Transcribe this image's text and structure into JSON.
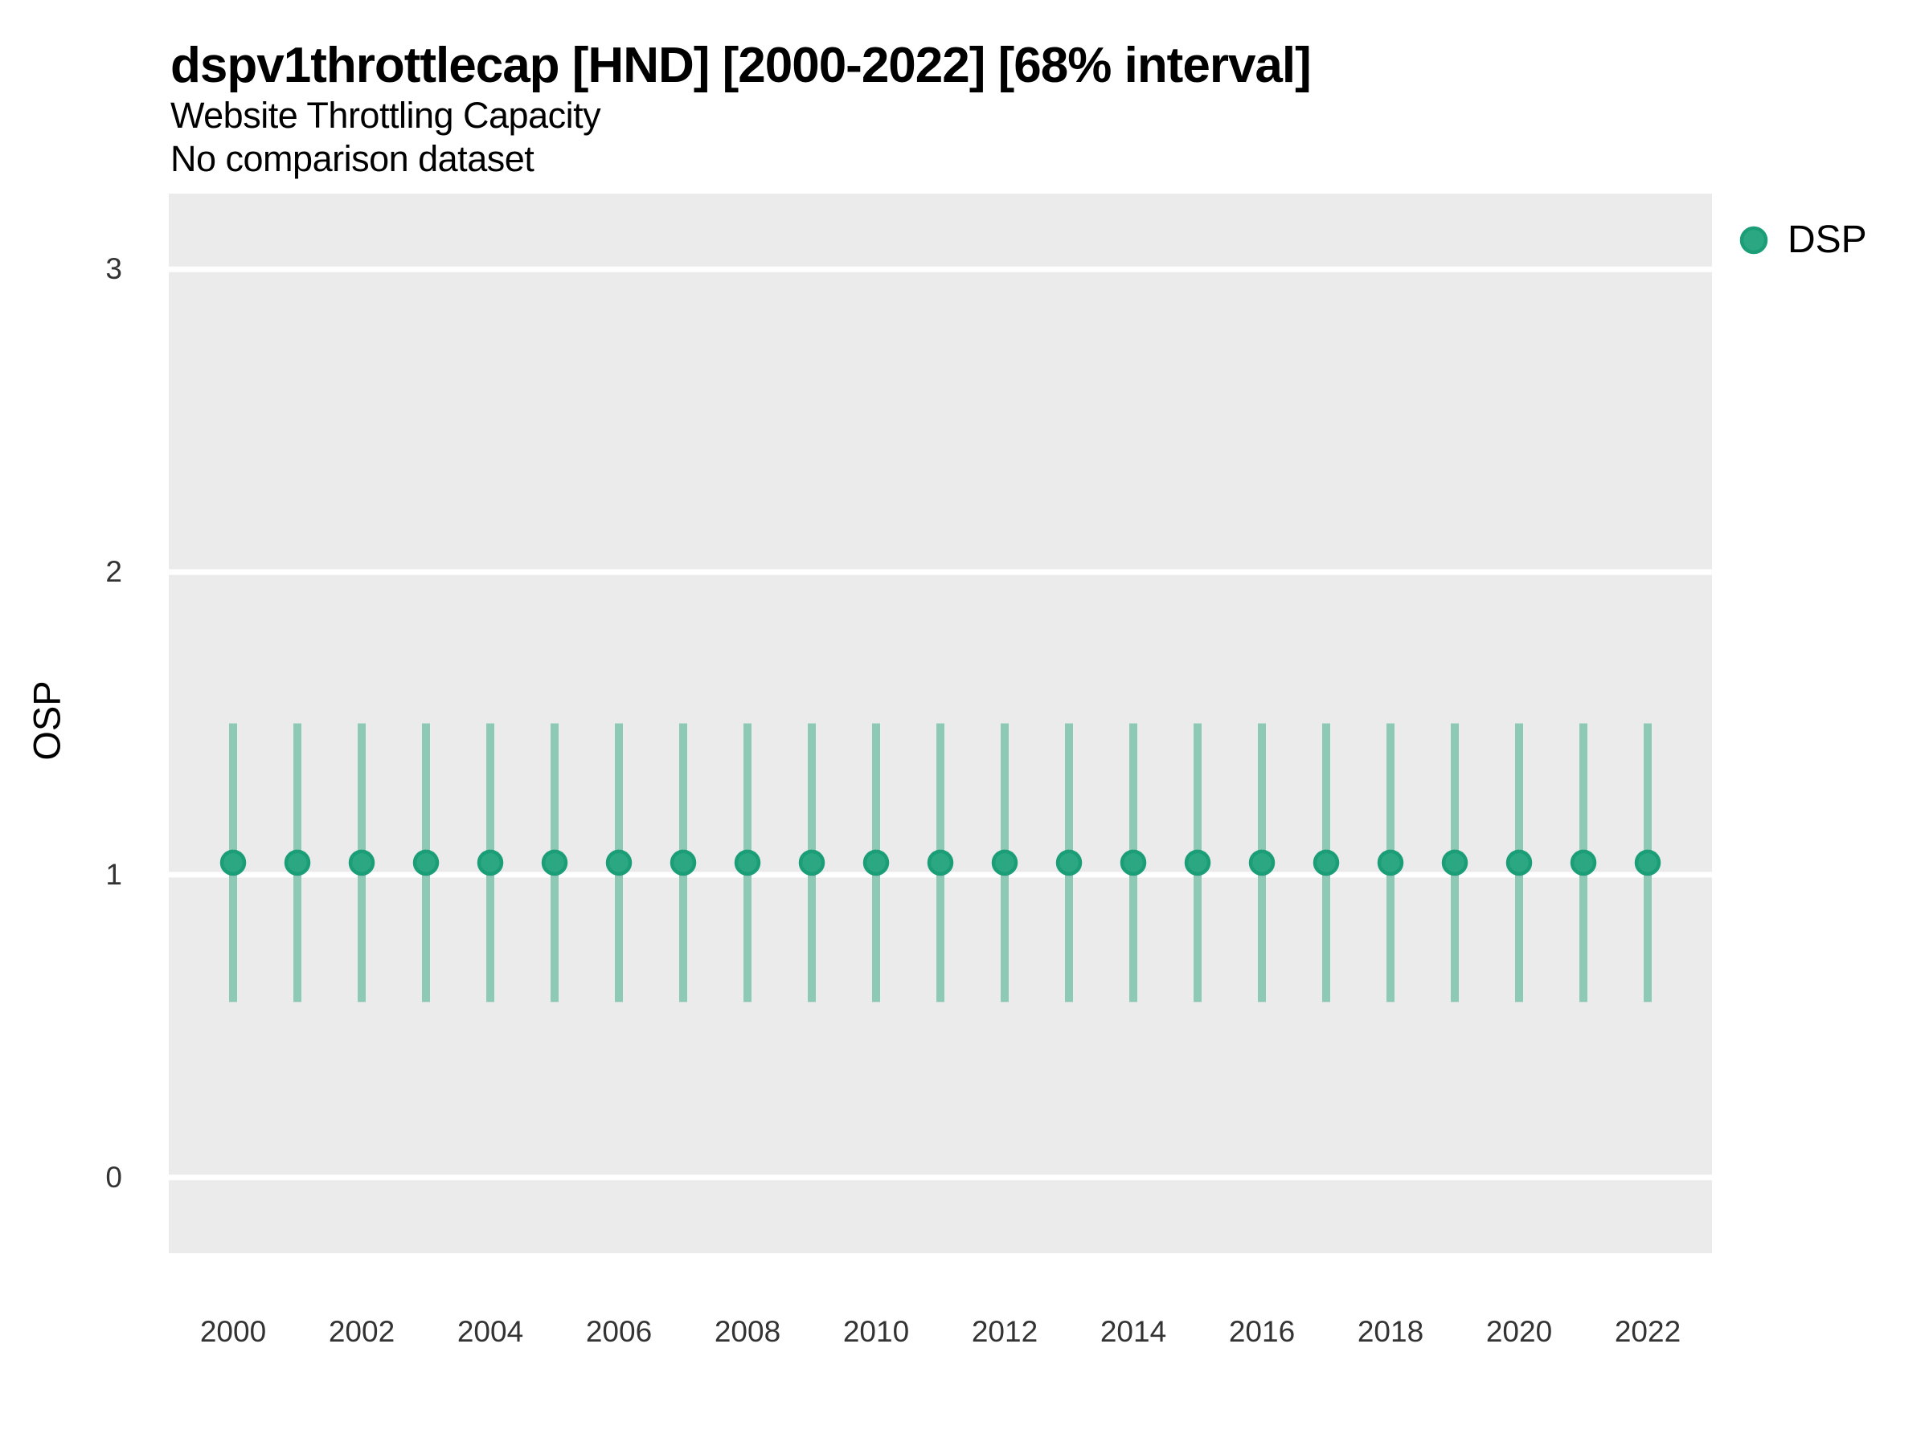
{
  "chart_data": {
    "type": "scatter",
    "title": "dspv1throttlecap [HND] [2000-2022] [68% interval]",
    "subtitle": "Website Throttling Capacity",
    "note": "No comparison dataset",
    "xlabel": "",
    "ylabel": "OSP",
    "x": [
      2000,
      2001,
      2002,
      2003,
      2004,
      2005,
      2006,
      2007,
      2008,
      2009,
      2010,
      2011,
      2012,
      2013,
      2014,
      2015,
      2016,
      2017,
      2018,
      2019,
      2020,
      2021,
      2022
    ],
    "series": [
      {
        "name": "DSP",
        "interval_label": "68% interval",
        "values": [
          1.04,
          1.04,
          1.04,
          1.04,
          1.04,
          1.04,
          1.04,
          1.04,
          1.04,
          1.04,
          1.04,
          1.04,
          1.04,
          1.04,
          1.04,
          1.04,
          1.04,
          1.04,
          1.04,
          1.04,
          1.04,
          1.04,
          1.04
        ],
        "interval_low": [
          0.58,
          0.58,
          0.58,
          0.58,
          0.58,
          0.58,
          0.58,
          0.58,
          0.58,
          0.58,
          0.58,
          0.58,
          0.58,
          0.58,
          0.58,
          0.58,
          0.58,
          0.58,
          0.58,
          0.58,
          0.58,
          0.58,
          0.58
        ],
        "interval_high": [
          1.5,
          1.5,
          1.5,
          1.5,
          1.5,
          1.5,
          1.5,
          1.5,
          1.5,
          1.5,
          1.5,
          1.5,
          1.5,
          1.5,
          1.5,
          1.5,
          1.5,
          1.5,
          1.5,
          1.5,
          1.5,
          1.5,
          1.5
        ]
      }
    ],
    "ylim": [
      -0.25,
      3.25
    ],
    "yticks": [
      "0",
      "1",
      "2",
      "3"
    ],
    "ytick_values": [
      0,
      1,
      2,
      3
    ],
    "xtick_labels": [
      "2000",
      "2002",
      "2004",
      "2006",
      "2008",
      "2010",
      "2012",
      "2014",
      "2016",
      "2018",
      "2020",
      "2022"
    ],
    "xtick_values": [
      2000,
      2002,
      2004,
      2006,
      2008,
      2010,
      2012,
      2014,
      2016,
      2018,
      2020,
      2022
    ],
    "grid": "horizontal-major",
    "legend_position": "right"
  },
  "legend": {
    "items": [
      {
        "label": "DSP",
        "marker": "circle-icon"
      }
    ]
  },
  "colors": {
    "point_fill": "#2BA881",
    "point_stroke": "#1B9E77",
    "errorbar": "#8DC9B4",
    "panel_bg": "#EBEBEB",
    "gridline": "#FFFFFF",
    "tick_text": "#333333"
  }
}
